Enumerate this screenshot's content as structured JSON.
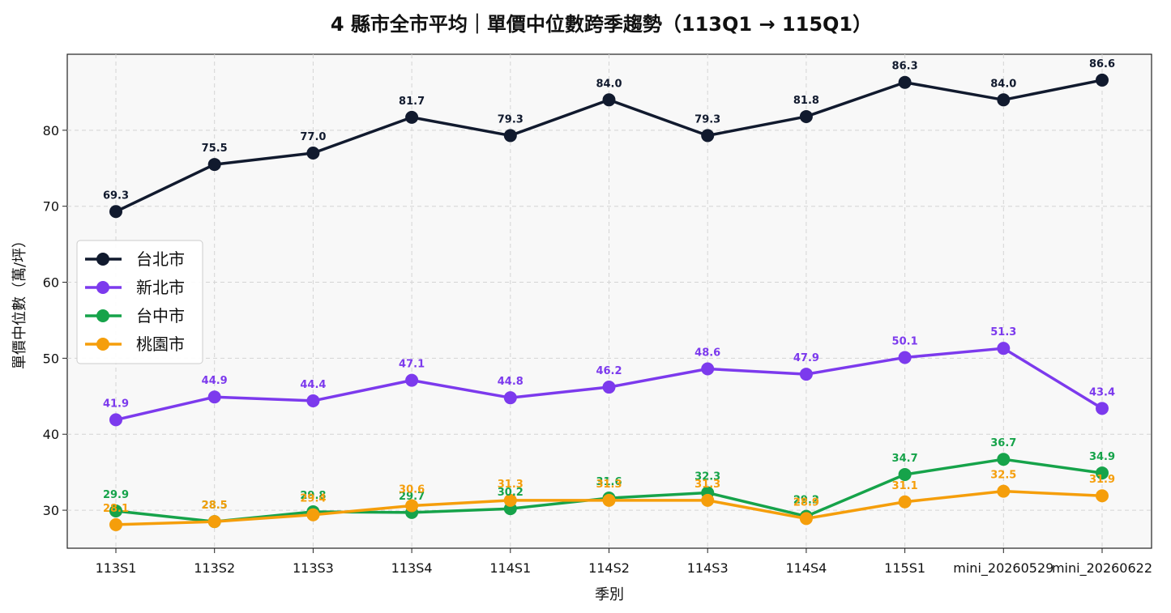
{
  "chart_data": {
    "type": "line",
    "title": "4 縣市全市平均｜單價中位數跨季趨勢（113Q1 → 115Q1）",
    "xlabel": "季別",
    "ylabel": "單價中位數（萬/坪）",
    "categories": [
      "113S1",
      "113S2",
      "113S3",
      "113S4",
      "114S1",
      "114S2",
      "114S3",
      "114S4",
      "115S1",
      "mini_20260529",
      "mini_20260622"
    ],
    "yticks": [
      "30",
      "40",
      "50",
      "60",
      "70",
      "80"
    ],
    "ylim": [
      25,
      90
    ],
    "grid": true,
    "legend_position": "center-left",
    "series": [
      {
        "name": "台北市",
        "color": "#111a2e",
        "values": [
          69.3,
          75.5,
          77.0,
          81.7,
          79.3,
          84.0,
          79.3,
          81.8,
          86.3,
          84.0,
          86.6
        ],
        "labels": [
          "69.3",
          "75.5",
          "77.0",
          "81.7",
          "79.3",
          "84.0",
          "79.3",
          "81.8",
          "86.3",
          "84.0",
          "86.6"
        ]
      },
      {
        "name": "新北市",
        "color": "#7c3aed",
        "values": [
          41.9,
          44.9,
          44.4,
          47.1,
          44.8,
          46.2,
          48.6,
          47.9,
          50.1,
          51.3,
          43.4
        ],
        "labels": [
          "41.9",
          "44.9",
          "44.4",
          "47.1",
          "44.8",
          "46.2",
          "48.6",
          "47.9",
          "50.1",
          "51.3",
          "43.4"
        ]
      },
      {
        "name": "台中市",
        "color": "#16a34a",
        "values": [
          29.9,
          28.5,
          29.8,
          29.7,
          30.2,
          31.6,
          32.3,
          29.2,
          34.7,
          36.7,
          34.9
        ],
        "labels": [
          "29.9",
          "28.5",
          "29.8",
          "29.7",
          "30.2",
          "31.6",
          "32.3",
          "29.2",
          "34.7",
          "36.7",
          "34.9"
        ]
      },
      {
        "name": "桃園市",
        "color": "#f59e0b",
        "values": [
          28.1,
          28.5,
          29.4,
          30.6,
          31.3,
          31.3,
          31.3,
          28.9,
          31.1,
          32.5,
          31.9
        ],
        "labels": [
          "28.1",
          "28.5",
          "29.4",
          "30.6",
          "31.3",
          "31.3",
          "31.3",
          "28.9",
          "31.1",
          "32.5",
          "31.9"
        ]
      }
    ]
  }
}
